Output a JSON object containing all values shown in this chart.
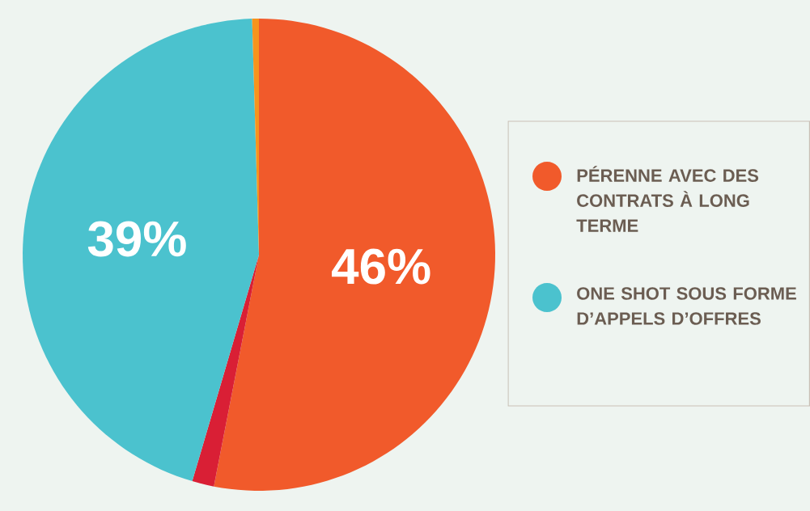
{
  "chart_data": {
    "type": "pie",
    "categories": [
      "PÉRENNE AVEC DES CONTRATS À LONG TERME",
      null,
      "ONE SHOT SOUS FORME D’APPELS D’OFFRES",
      null
    ],
    "values": [
      46,
      1.3,
      39,
      0.4
    ],
    "colors": [
      "#f15a2b",
      "#d91f35",
      "#4bc2ce",
      "#f7941d"
    ],
    "value_labels": [
      "46%",
      null,
      "39%",
      null
    ],
    "legend": "right"
  }
}
